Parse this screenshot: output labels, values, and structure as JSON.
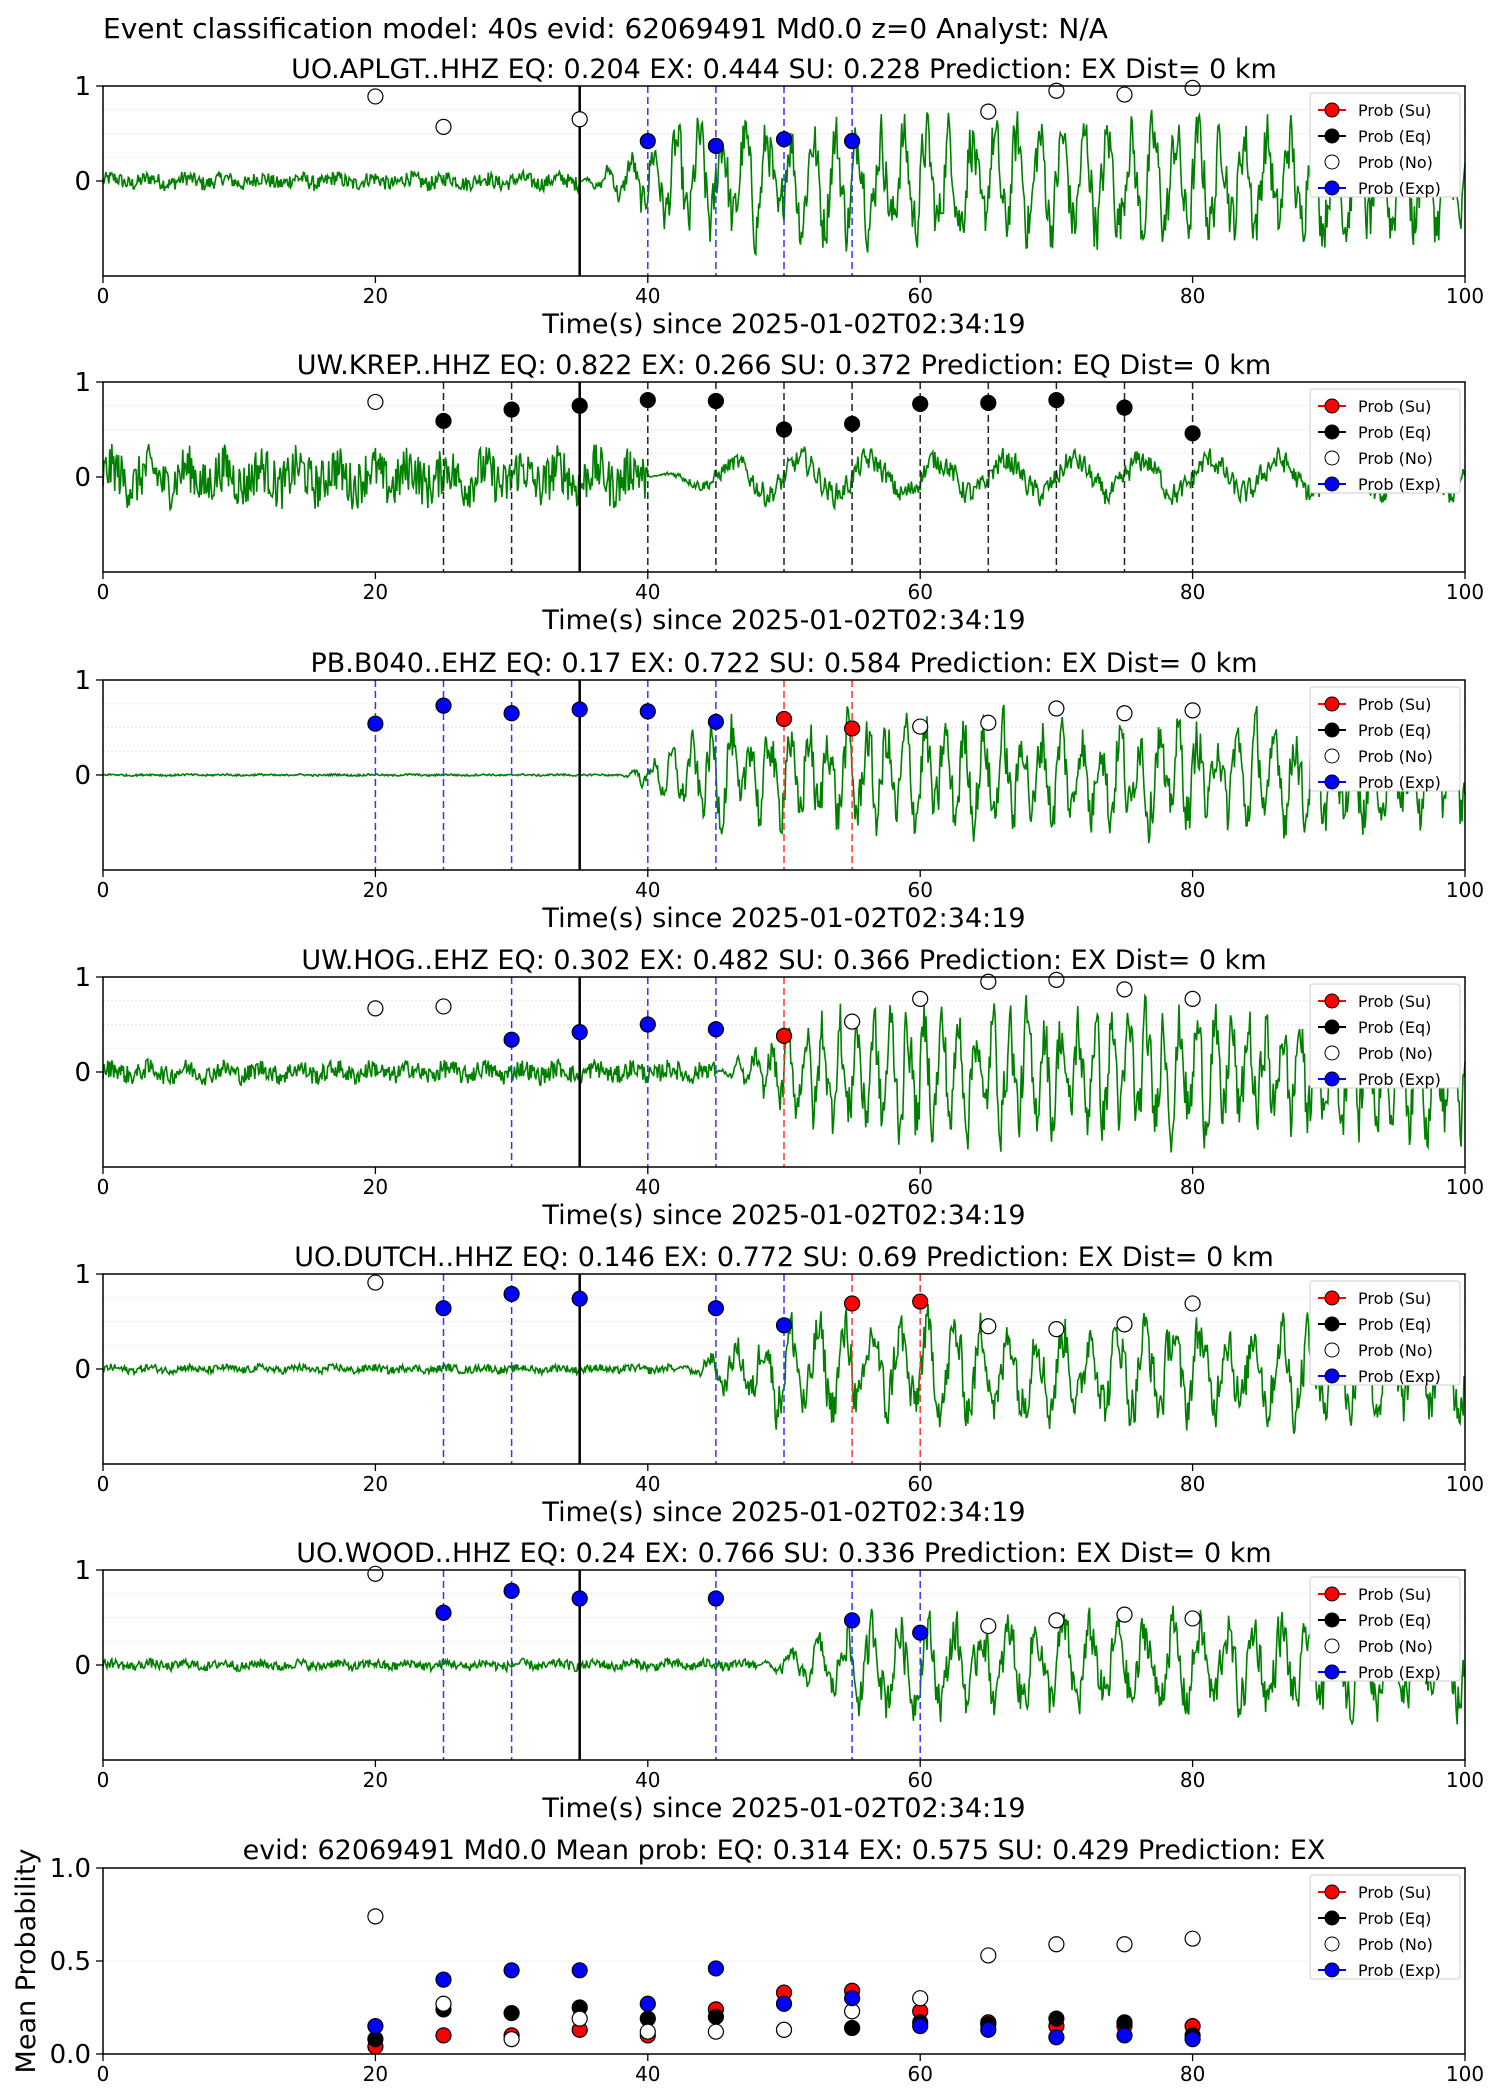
{
  "figure_title": "Event classification model: 40s evid: 62069491 Md0.0 z=0 Analyst: N/A",
  "legend_labels": [
    "Prob (Su)",
    "Prob (Eq)",
    "Prob (No)",
    "Prob (Exp)"
  ],
  "colors": {
    "su": "#ff0000",
    "eq": "#000000",
    "no": "#ffffff",
    "exp": "#0000ff",
    "trace": "#008000"
  },
  "chart_data": [
    {
      "type": "line",
      "title": "UO.APLGT..HHZ   EQ: 0.204  EX: 0.444  SU: 0.228   Prediction: EX    Dist= 0 km",
      "xlabel": "Time(s) since 2025-01-02T02:34:19",
      "xlim": [
        0,
        100
      ],
      "ylim": [
        -1,
        1
      ],
      "xticks": [
        "0",
        "20",
        "40",
        "60",
        "80",
        "100"
      ],
      "yticks": [
        "1",
        "0"
      ],
      "trace_profile": {
        "noise_before": 0.08,
        "arrival_s": 35,
        "amp_after": 0.75,
        "freq_hz": 0.6
      },
      "origin_line_s": 35,
      "markers": {
        "no": [
          [
            20,
            0.89
          ],
          [
            25,
            0.57
          ],
          [
            35,
            0.65
          ],
          [
            65,
            0.73
          ],
          [
            70,
            0.95
          ],
          [
            75,
            0.91
          ],
          [
            80,
            0.98
          ]
        ],
        "exp": [
          [
            40,
            0.42
          ],
          [
            45,
            0.37
          ],
          [
            50,
            0.44
          ],
          [
            55,
            0.42
          ]
        ],
        "eq": [],
        "su": []
      },
      "vlines": {
        "exp": [
          40,
          45,
          50,
          55
        ],
        "eq": [],
        "su": []
      }
    },
    {
      "type": "line",
      "title": "UW.KREP..HHZ   EQ: 0.822  EX: 0.266  SU: 0.372   Prediction: EQ    Dist= 0 km",
      "xlabel": "Time(s) since 2025-01-02T02:34:19",
      "xlim": [
        0,
        100
      ],
      "ylim": [
        -1,
        1
      ],
      "xticks": [
        "0",
        "20",
        "40",
        "60",
        "80",
        "100"
      ],
      "yticks": [
        "1",
        "0"
      ],
      "trace_profile": {
        "noise_before": 0.25,
        "arrival_s": 40,
        "amp_after": 0.3,
        "freq_hz": 0.2
      },
      "origin_line_s": 35,
      "markers": {
        "no": [
          [
            20,
            0.79
          ]
        ],
        "eq": [
          [
            25,
            0.59
          ],
          [
            30,
            0.71
          ],
          [
            35,
            0.75
          ],
          [
            40,
            0.81
          ],
          [
            45,
            0.8
          ],
          [
            50,
            0.5
          ],
          [
            55,
            0.56
          ],
          [
            60,
            0.77
          ],
          [
            65,
            0.78
          ],
          [
            70,
            0.81
          ],
          [
            75,
            0.73
          ],
          [
            80,
            0.46
          ]
        ],
        "exp": [],
        "su": []
      },
      "vlines": {
        "eq": [
          25,
          30,
          40,
          45,
          50,
          55,
          60,
          65,
          70,
          75,
          80
        ],
        "exp": [],
        "su": []
      }
    },
    {
      "type": "line",
      "title": "PB.B040..EHZ   EQ: 0.17  EX: 0.722  SU: 0.584   Prediction: EX    Dist= 0 km",
      "xlabel": "Time(s) since 2025-01-02T02:34:19",
      "xlim": [
        0,
        100
      ],
      "ylim": [
        -1,
        1
      ],
      "xticks": [
        "0",
        "20",
        "40",
        "60",
        "80",
        "100"
      ],
      "yticks": [
        "1",
        "0"
      ],
      "trace_profile": {
        "noise_before": 0.01,
        "arrival_s": 38,
        "amp_after": 0.7,
        "freq_hz": 0.7
      },
      "origin_line_s": 35,
      "markers": {
        "exp": [
          [
            20,
            0.54
          ],
          [
            25,
            0.73
          ],
          [
            30,
            0.65
          ],
          [
            35,
            0.69
          ],
          [
            40,
            0.67
          ],
          [
            45,
            0.56
          ]
        ],
        "su": [
          [
            50,
            0.59
          ],
          [
            55,
            0.49
          ]
        ],
        "no": [
          [
            60,
            0.51
          ],
          [
            65,
            0.55
          ],
          [
            70,
            0.7
          ],
          [
            75,
            0.65
          ],
          [
            80,
            0.68
          ]
        ],
        "eq": []
      },
      "vlines": {
        "exp": [
          20,
          25,
          30,
          40,
          45
        ],
        "su": [
          50,
          55
        ],
        "eq": []
      }
    },
    {
      "type": "line",
      "title": "UW.HOG..EHZ   EQ: 0.302  EX: 0.482  SU: 0.366   Prediction: EX    Dist= 0 km",
      "xlabel": "Time(s) since 2025-01-02T02:34:19",
      "xlim": [
        0,
        100
      ],
      "ylim": [
        -1,
        1
      ],
      "xticks": [
        "0",
        "20",
        "40",
        "60",
        "80",
        "100"
      ],
      "yticks": [
        "1",
        "0"
      ],
      "trace_profile": {
        "noise_before": 0.1,
        "arrival_s": 45,
        "amp_after": 0.8,
        "freq_hz": 0.8
      },
      "origin_line_s": 35,
      "markers": {
        "no": [
          [
            20,
            0.67
          ],
          [
            25,
            0.69
          ],
          [
            55,
            0.53
          ],
          [
            60,
            0.77
          ],
          [
            65,
            0.95
          ],
          [
            70,
            0.97
          ],
          [
            75,
            0.87
          ],
          [
            80,
            0.77
          ]
        ],
        "exp": [
          [
            30,
            0.34
          ],
          [
            35,
            0.42
          ],
          [
            40,
            0.5
          ],
          [
            45,
            0.45
          ]
        ],
        "su": [
          [
            50,
            0.38
          ]
        ],
        "eq": []
      },
      "vlines": {
        "exp": [
          30,
          40,
          45
        ],
        "su": [
          50
        ],
        "eq": []
      }
    },
    {
      "type": "line",
      "title": "UO.DUTCH..HHZ   EQ: 0.146  EX: 0.772  SU: 0.69   Prediction: EX    Dist= 0 km",
      "xlabel": "Time(s) since 2025-01-02T02:34:19",
      "xlim": [
        0,
        100
      ],
      "ylim": [
        -1,
        1
      ],
      "xticks": [
        "0",
        "20",
        "40",
        "60",
        "80",
        "100"
      ],
      "yticks": [
        "1",
        "0"
      ],
      "trace_profile": {
        "noise_before": 0.04,
        "arrival_s": 42,
        "amp_after": 0.65,
        "freq_hz": 0.5
      },
      "origin_line_s": 35,
      "markers": {
        "no": [
          [
            20,
            0.91
          ],
          [
            65,
            0.45
          ],
          [
            70,
            0.42
          ],
          [
            75,
            0.47
          ],
          [
            80,
            0.69
          ]
        ],
        "exp": [
          [
            25,
            0.64
          ],
          [
            30,
            0.79
          ],
          [
            35,
            0.74
          ],
          [
            45,
            0.64
          ],
          [
            50,
            0.46
          ]
        ],
        "su": [
          [
            55,
            0.69
          ],
          [
            60,
            0.71
          ]
        ],
        "eq": []
      },
      "vlines": {
        "exp": [
          25,
          30,
          45,
          50
        ],
        "su": [
          55,
          60
        ],
        "eq": []
      }
    },
    {
      "type": "line",
      "title": "UO.WOOD..HHZ   EQ: 0.24  EX: 0.766  SU: 0.336   Prediction: EX    Dist= 0 km",
      "xlabel": "Time(s) since 2025-01-02T02:34:19",
      "xlim": [
        0,
        100
      ],
      "ylim": [
        -1,
        1
      ],
      "xticks": [
        "0",
        "20",
        "40",
        "60",
        "80",
        "100"
      ],
      "yticks": [
        "1",
        "0"
      ],
      "trace_profile": {
        "noise_before": 0.05,
        "arrival_s": 48,
        "amp_after": 0.6,
        "freq_hz": 0.5
      },
      "origin_line_s": 35,
      "markers": {
        "no": [
          [
            20,
            0.96
          ],
          [
            65,
            0.41
          ],
          [
            70,
            0.47
          ],
          [
            75,
            0.53
          ],
          [
            80,
            0.49
          ]
        ],
        "exp": [
          [
            25,
            0.55
          ],
          [
            30,
            0.78
          ],
          [
            35,
            0.7
          ],
          [
            45,
            0.7
          ],
          [
            55,
            0.47
          ],
          [
            60,
            0.34
          ]
        ],
        "su": [],
        "eq": []
      },
      "vlines": {
        "exp": [
          25,
          30,
          45,
          55,
          60
        ],
        "su": [],
        "eq": []
      }
    },
    {
      "type": "scatter",
      "title": "evid: 62069491  Md0.0   Mean prob:   EQ: 0.314  EX: 0.575  SU: 0.429   Prediction: EX",
      "ylabel": "Mean Probability",
      "xlim": [
        0,
        100
      ],
      "ylim": [
        0,
        1
      ],
      "xticks": [
        "0",
        "20",
        "40",
        "60",
        "80",
        "100"
      ],
      "yticks": [
        "1.0",
        "0.5",
        "0.0"
      ],
      "series": [
        {
          "name": "Prob (Su)",
          "x": [
            20,
            25,
            30,
            35,
            40,
            45,
            50,
            55,
            60,
            65,
            70,
            75,
            80
          ],
          "y": [
            0.04,
            0.1,
            0.1,
            0.13,
            0.1,
            0.24,
            0.33,
            0.34,
            0.23,
            0.17,
            0.15,
            0.15,
            0.15
          ]
        },
        {
          "name": "Prob (Eq)",
          "x": [
            20,
            25,
            30,
            35,
            40,
            45,
            50,
            55,
            60,
            65,
            70,
            75,
            80
          ],
          "y": [
            0.08,
            0.24,
            0.22,
            0.25,
            0.19,
            0.2,
            0.13,
            0.14,
            0.17,
            0.16,
            0.19,
            0.17,
            0.1
          ]
        },
        {
          "name": "Prob (No)",
          "x": [
            20,
            25,
            30,
            35,
            40,
            45,
            50,
            55,
            60,
            65,
            70,
            75,
            80
          ],
          "y": [
            0.74,
            0.27,
            0.08,
            0.19,
            0.12,
            0.12,
            0.13,
            0.23,
            0.3,
            0.53,
            0.59,
            0.59,
            0.62
          ]
        },
        {
          "name": "Prob (Exp)",
          "x": [
            20,
            25,
            30,
            35,
            40,
            45,
            50,
            55,
            60,
            65,
            70,
            75,
            80
          ],
          "y": [
            0.15,
            0.4,
            0.45,
            0.45,
            0.27,
            0.46,
            0.27,
            0.3,
            0.15,
            0.13,
            0.09,
            0.1,
            0.08
          ]
        }
      ]
    }
  ]
}
